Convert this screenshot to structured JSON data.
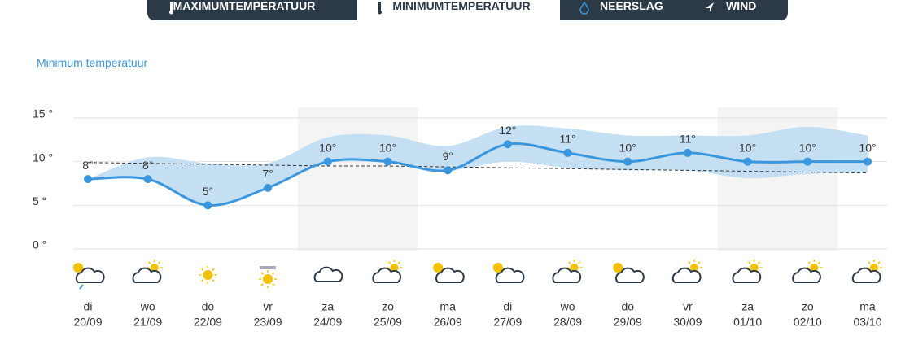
{
  "tabs": [
    "MAXIMUMTEMPERATUUR",
    "MINIMUMTEMPERATUUR",
    "NEERSLAG",
    "WIND"
  ],
  "active_tab": 1,
  "chart_data": {
    "type": "line",
    "title": "Minimum temperatuur",
    "categories": [
      "di",
      "wo",
      "do",
      "vr",
      "za",
      "zo",
      "ma",
      "di",
      "wo",
      "do",
      "vr",
      "za",
      "zo",
      "ma"
    ],
    "dates": [
      "20/09",
      "21/09",
      "22/09",
      "23/09",
      "24/09",
      "25/09",
      "26/09",
      "27/09",
      "28/09",
      "29/09",
      "30/09",
      "01/10",
      "02/10",
      "03/10"
    ],
    "series": [
      {
        "color": "#3a96dd",
        "values": [
          8,
          8,
          5,
          7,
          10,
          10,
          9,
          12,
          11,
          10,
          11,
          10,
          10,
          10
        ],
        "value_labels": [
          "8°",
          "8°",
          "5°",
          "7°",
          "10°",
          "10°",
          "9°",
          "12°",
          "11°",
          "10°",
          "11°",
          "10°",
          "10°",
          "10°"
        ]
      }
    ],
    "band": {
      "color": "#bfdcf2",
      "upper": [
        8,
        10.5,
        9.8,
        9.8,
        12.8,
        13,
        11.8,
        14,
        13.8,
        13,
        13,
        13,
        14,
        13
      ],
      "lower": [
        8,
        8,
        5,
        7,
        10,
        10,
        9,
        10,
        9.3,
        9,
        9,
        8.1,
        8.6,
        8.7
      ]
    },
    "normal": {
      "color": "#333333",
      "values": [
        9.9,
        9.8,
        9.7,
        9.6,
        9.5,
        9.5,
        9.4,
        9.3,
        9.2,
        9.1,
        9.0,
        8.9,
        8.8,
        8.7
      ]
    },
    "ylim": [
      0,
      15
    ],
    "yticks": [
      {
        "value": 0,
        "label": "0 °"
      },
      {
        "value": 5,
        "label": "5 °"
      },
      {
        "value": 10,
        "label": "10 °"
      },
      {
        "value": 15,
        "label": "15 °"
      }
    ],
    "grid": true,
    "weekend": [
      4,
      5,
      11,
      12
    ]
  }
}
